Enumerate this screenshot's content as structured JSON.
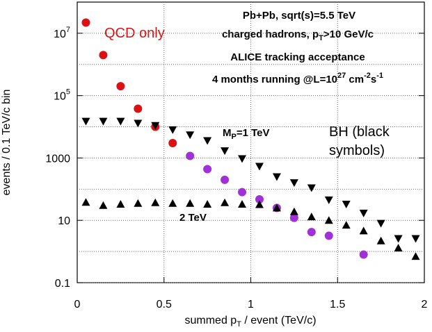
{
  "chart_data": {
    "type": "scatter",
    "ylabel": "events / 0.1 TeV/c bin",
    "xlabel": [
      "summed p",
      "T",
      " / event (TeV/c)"
    ],
    "annotations": [
      [
        "Pb+Pb, sqrt(s)=5.5 TeV"
      ],
      [
        "charged hadrons, p",
        "T",
        ">10 GeV/c"
      ],
      [
        "ALICE tracking acceptance"
      ],
      [
        "4 months running @L=10",
        "27",
        " cm",
        "-2",
        "s",
        "-1"
      ],
      [
        "BH (black"
      ],
      [
        "symbols)"
      ]
    ],
    "xlim": [
      0,
      2
    ],
    "xticks": [
      0,
      0.5,
      1,
      1.5,
      2
    ],
    "ylim": [
      0.1,
      100000000
    ],
    "yticks": [
      0.1,
      10,
      1000,
      {
        "value": 100000,
        "label": [
          "10",
          "5"
        ]
      },
      {
        "value": 10000000,
        "label": [
          "10",
          "7"
        ]
      }
    ],
    "log_y": true,
    "grid": true,
    "series": [
      {
        "name": "QCD only",
        "color": "#dd1111",
        "marker": "circle",
        "x": [
          0.05,
          0.15,
          0.25,
          0.35,
          0.45,
          0.55
        ],
        "values": [
          22000000,
          2000000,
          200000,
          38000,
          10000,
          3000
        ]
      },
      {
        "color": "#a030d8",
        "marker": "circle",
        "x": [
          0.65,
          0.75,
          0.85,
          0.95,
          1.05,
          1.15,
          1.25,
          1.35,
          1.45,
          1.65
        ],
        "values": [
          1160,
          440,
          200,
          80,
          47,
          25,
          12,
          4.2,
          3.2,
          0.8
        ]
      },
      {
        "name": [
          "M",
          "P",
          "=1 TeV"
        ],
        "color": "#000000",
        "marker": "triangle-down",
        "x": [
          0.05,
          0.15,
          0.25,
          0.35,
          0.45,
          0.55,
          0.65,
          0.75,
          0.85,
          0.95,
          1.05,
          1.15,
          1.25,
          1.35,
          1.45,
          1.55,
          1.65,
          1.75,
          1.85,
          1.95
        ],
        "values": [
          15000,
          15000,
          15000,
          13000,
          11000,
          8000,
          5500,
          3600,
          1700,
          950,
          540,
          250,
          160,
          110,
          45,
          33,
          17,
          8,
          2.6,
          2.6
        ]
      },
      {
        "name": "2 TeV",
        "color": "#000000",
        "marker": "triangle-up",
        "x": [
          0.05,
          0.15,
          0.25,
          0.35,
          0.45,
          0.55,
          0.65,
          0.75,
          0.85,
          0.95,
          1.05,
          1.15,
          1.25,
          1.35,
          1.45,
          1.55,
          1.65,
          1.75,
          1.85,
          1.95
        ],
        "values": [
          38,
          30,
          33,
          35,
          37,
          35,
          35,
          33,
          37,
          33,
          32,
          25,
          19,
          13,
          10,
          7,
          4.6,
          2.2,
          1.3,
          0.7
        ]
      }
    ]
  }
}
